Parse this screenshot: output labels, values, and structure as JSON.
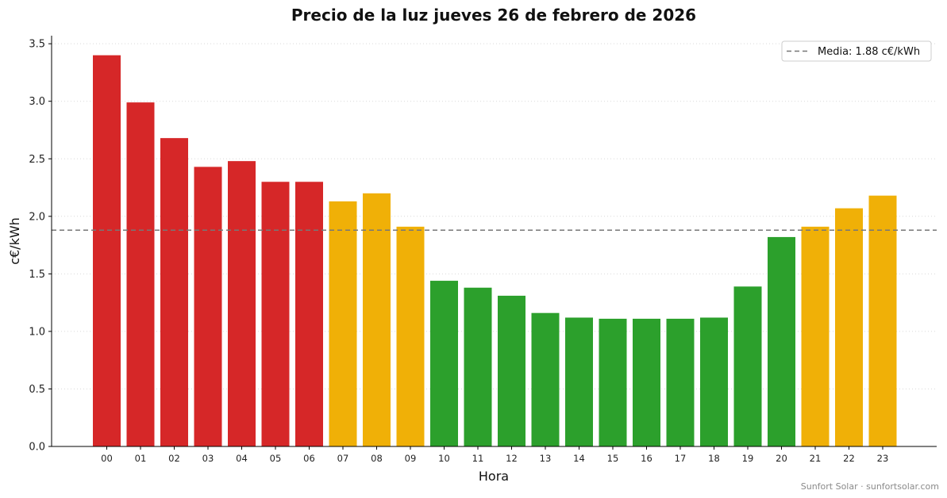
{
  "chart_data": {
    "type": "bar",
    "title": "Precio de la luz jueves 26 de febrero de 2026",
    "xlabel": "Hora",
    "ylabel": "c€/kWh",
    "ylim": [
      0,
      3.57
    ],
    "yticks": [
      "0.0",
      "0.5",
      "1.0",
      "1.5",
      "2.0",
      "2.5",
      "3.0",
      "3.5"
    ],
    "categories": [
      "00",
      "01",
      "02",
      "03",
      "04",
      "05",
      "06",
      "07",
      "08",
      "09",
      "10",
      "11",
      "12",
      "13",
      "14",
      "15",
      "16",
      "17",
      "18",
      "19",
      "20",
      "21",
      "22",
      "23"
    ],
    "values": [
      3.4,
      2.99,
      2.68,
      2.43,
      2.48,
      2.3,
      2.3,
      2.13,
      2.2,
      1.91,
      1.44,
      1.38,
      1.31,
      1.16,
      1.12,
      1.11,
      1.11,
      1.11,
      1.12,
      1.39,
      1.82,
      1.91,
      2.07,
      2.18
    ],
    "bar_colors": [
      "#d62728",
      "#d62728",
      "#d62728",
      "#d62728",
      "#d62728",
      "#d62728",
      "#d62728",
      "#f0b007",
      "#f0b007",
      "#f0b007",
      "#2ca02c",
      "#2ca02c",
      "#2ca02c",
      "#2ca02c",
      "#2ca02c",
      "#2ca02c",
      "#2ca02c",
      "#2ca02c",
      "#2ca02c",
      "#2ca02c",
      "#2ca02c",
      "#f0b007",
      "#f0b007",
      "#f0b007"
    ],
    "mean": 1.88,
    "mean_label": "Media: 1.88 c€/kWh",
    "mean_line_color": "#777777",
    "legend_position": "top-right",
    "grid": "horizontal dotted"
  },
  "footer": "Sunfort Solar · sunfortsolar.com"
}
